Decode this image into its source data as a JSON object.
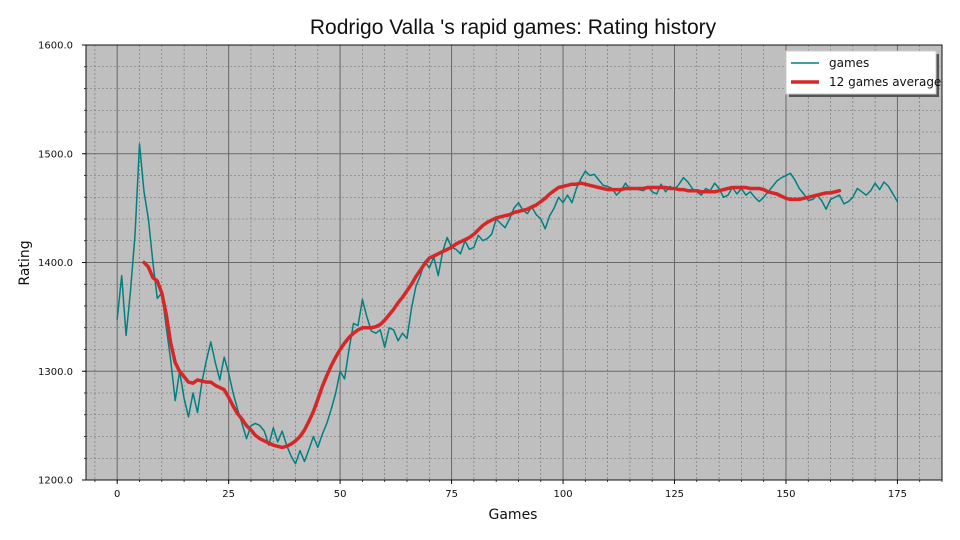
{
  "chart_data": {
    "type": "line",
    "title": "Rodrigo Valla 's rapid games: Rating history",
    "xlabel": "Games",
    "ylabel": "Rating",
    "xlim": [
      -7,
      185
    ],
    "ylim": [
      1200,
      1600
    ],
    "xticks": [
      0,
      25,
      50,
      75,
      100,
      125,
      150,
      175
    ],
    "xtick_labels": [
      "0",
      "25",
      "50",
      "75",
      "100",
      "125",
      "150",
      "175"
    ],
    "yticks": [
      1200,
      1300,
      1400,
      1500,
      1600
    ],
    "ytick_labels": [
      "1200.0",
      "1300.0",
      "1400.0",
      "1500.0",
      "1600.0"
    ],
    "grid": true,
    "background": "#bfbfbf",
    "legend": "top-right",
    "series": [
      {
        "name": "games",
        "color": "#008080",
        "width": 1.5,
        "x_start": 0,
        "values": [
          1348,
          1388,
          1333,
          1375,
          1425,
          1509,
          1465,
          1440,
          1400,
          1367,
          1372,
          1340,
          1310,
          1273,
          1300,
          1275,
          1258,
          1280,
          1262,
          1290,
          1310,
          1327,
          1308,
          1292,
          1313,
          1298,
          1280,
          1265,
          1252,
          1238,
          1250,
          1252,
          1250,
          1245,
          1232,
          1248,
          1235,
          1245,
          1232,
          1222,
          1215,
          1227,
          1217,
          1228,
          1240,
          1230,
          1242,
          1252,
          1265,
          1280,
          1300,
          1293,
          1320,
          1344,
          1342,
          1366,
          1350,
          1337,
          1335,
          1338,
          1322,
          1340,
          1338,
          1328,
          1335,
          1330,
          1358,
          1378,
          1388,
          1401,
          1395,
          1405,
          1388,
          1410,
          1423,
          1414,
          1412,
          1408,
          1420,
          1412,
          1414,
          1425,
          1420,
          1422,
          1426,
          1440,
          1436,
          1432,
          1440,
          1450,
          1455,
          1448,
          1445,
          1451,
          1444,
          1440,
          1431,
          1443,
          1450,
          1460,
          1455,
          1462,
          1455,
          1468,
          1477,
          1484,
          1480,
          1481,
          1476,
          1471,
          1470,
          1468,
          1462,
          1466,
          1473,
          1467,
          1468,
          1467,
          1466,
          1470,
          1465,
          1463,
          1472,
          1465,
          1470,
          1467,
          1472,
          1478,
          1474,
          1468,
          1465,
          1462,
          1468,
          1466,
          1473,
          1468,
          1460,
          1462,
          1469,
          1463,
          1468,
          1462,
          1465,
          1460,
          1456,
          1460,
          1465,
          1470,
          1475,
          1478,
          1480,
          1482,
          1476,
          1468,
          1463,
          1457,
          1458,
          1462,
          1457,
          1449,
          1458,
          1460,
          1462,
          1454,
          1456,
          1460,
          1468,
          1465,
          1462,
          1466,
          1473,
          1467,
          1474,
          1470,
          1463,
          1456
        ]
      },
      {
        "name": "12 games average",
        "color": "#d62728",
        "width": 3.5,
        "x_start": 6,
        "values": [
          1400,
          1396,
          1386,
          1383,
          1372,
          1352,
          1326,
          1308,
          1300,
          1295,
          1290,
          1289,
          1292,
          1291,
          1290,
          1290,
          1287,
          1285,
          1283,
          1276,
          1268,
          1261,
          1256,
          1250,
          1246,
          1241,
          1238,
          1236,
          1234,
          1232,
          1231,
          1230,
          1231,
          1233,
          1236,
          1240,
          1246,
          1254,
          1263,
          1274,
          1286,
          1296,
          1305,
          1313,
          1320,
          1326,
          1331,
          1335,
          1338,
          1340,
          1340,
          1340,
          1341,
          1343,
          1347,
          1352,
          1357,
          1363,
          1368,
          1374,
          1380,
          1387,
          1393,
          1399,
          1404,
          1406,
          1408,
          1410,
          1412,
          1414,
          1417,
          1419,
          1421,
          1423,
          1426,
          1430,
          1434,
          1437,
          1439,
          1441,
          1442,
          1443,
          1444,
          1446,
          1447,
          1448,
          1449,
          1451,
          1453,
          1456,
          1459,
          1463,
          1466,
          1469,
          1470,
          1471,
          1472,
          1472,
          1473,
          1472,
          1471,
          1470,
          1469,
          1468,
          1467,
          1467,
          1467,
          1467,
          1468,
          1468,
          1468,
          1468,
          1468,
          1469,
          1469,
          1469,
          1469,
          1469,
          1468,
          1468,
          1467,
          1467,
          1466,
          1466,
          1466,
          1465,
          1465,
          1465,
          1465,
          1466,
          1467,
          1468,
          1469,
          1469,
          1469,
          1469,
          1468,
          1468,
          1468,
          1467,
          1465,
          1464,
          1463,
          1461,
          1459,
          1458,
          1458,
          1458,
          1459,
          1460,
          1461,
          1462,
          1463,
          1464,
          1464,
          1465,
          1466
        ]
      }
    ]
  }
}
